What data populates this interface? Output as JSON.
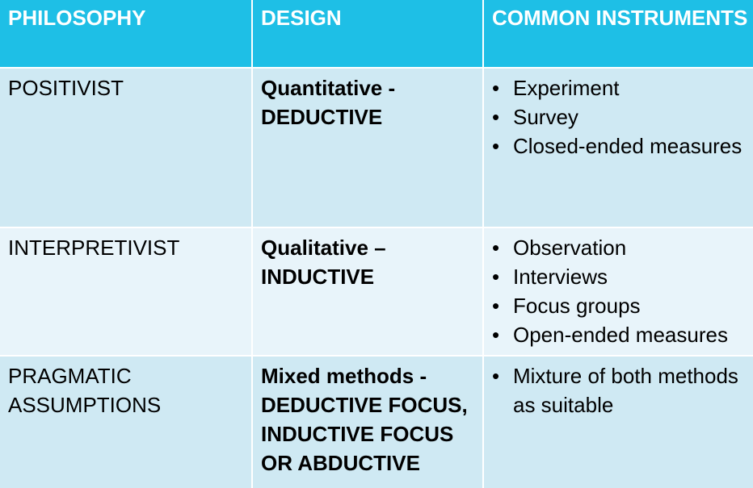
{
  "headers": [
    "PHILOSOPHY",
    "DESIGN",
    "COMMON INSTRUMENTS"
  ],
  "rows": [
    {
      "philosophy": [
        "POSITIVIST"
      ],
      "design": [
        "Quantitative -",
        "DEDUCTIVE"
      ],
      "instruments": [
        "Experiment",
        "Survey",
        "Closed-ended measures"
      ]
    },
    {
      "philosophy": [
        "INTERPRETIVIST"
      ],
      "design": [
        "Qualitative –",
        "INDUCTIVE"
      ],
      "instruments": [
        "Observation",
        "Interviews",
        "Focus groups",
        "Open-ended measures"
      ]
    },
    {
      "philosophy": [
        "PRAGMATIC",
        "ASSUMPTIONS"
      ],
      "design": [
        "Mixed methods -",
        "DEDUCTIVE FOCUS,",
        "INDUCTIVE FOCUS",
        "OR ABDUCTIVE"
      ],
      "instruments": [
        "Mixture of both methods as suitable"
      ]
    }
  ],
  "colors": {
    "header": "#1ebfe6",
    "row_dark": "#cfe9f3",
    "row_light": "#e8f4fa"
  }
}
